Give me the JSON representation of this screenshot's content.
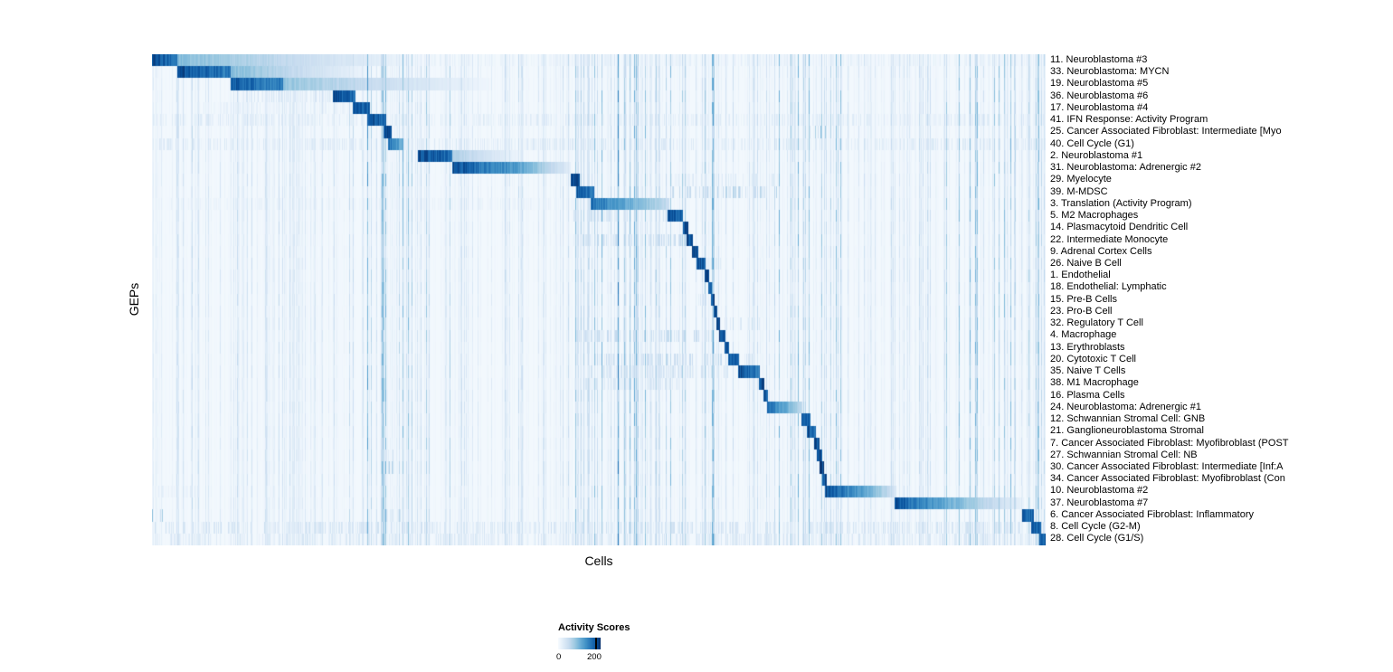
{
  "chart_data": {
    "type": "heatmap",
    "xlabel": "Cells",
    "ylabel": "GEPs",
    "colormap": "Blues",
    "colors": {
      "low": "#f7fbff",
      "high": "#08306b"
    },
    "legend": {
      "title": "Activity Scores",
      "ticks": [
        "0",
        "200"
      ]
    },
    "noise_bands": [
      [
        0.23,
        0.31
      ],
      [
        0.46,
        0.63
      ],
      [
        0.7,
        0.78
      ],
      [
        0.88,
        1.0
      ]
    ],
    "rows": [
      {
        "label": "11. Neuroblastoma #3",
        "seg": [
          [
            0.0,
            0.028,
            1,
            0.88
          ],
          [
            0.028,
            0.3,
            0.5,
            0.04
          ]
        ],
        "spk": [
          [
            0.3,
            1,
            0.1
          ]
        ]
      },
      {
        "label": "33. Neuroblastoma: MYCN",
        "seg": [
          [
            0.028,
            0.088,
            1,
            0.82
          ],
          [
            0.088,
            0.24,
            0.5,
            0.06
          ]
        ],
        "spk": []
      },
      {
        "label": "19. Neuroblastoma #5",
        "seg": [
          [
            0.088,
            0.146,
            0.95,
            0.78
          ],
          [
            0.146,
            0.38,
            0.45,
            0.04
          ]
        ],
        "spk": []
      },
      {
        "label": "36. Neuroblastoma #6",
        "seg": [
          [
            0.202,
            0.227,
            1,
            0.92
          ]
        ],
        "spk": [
          [
            0.09,
            0.2,
            0.18
          ]
        ]
      },
      {
        "label": "17. Neuroblastoma #4",
        "seg": [
          [
            0.2245,
            0.243,
            1,
            0.95
          ]
        ],
        "spk": [
          [
            0.05,
            0.22,
            0.1
          ]
        ]
      },
      {
        "label": "41. IFN Response: Activity Program",
        "seg": [
          [
            0.24,
            0.262,
            1,
            0.9
          ]
        ],
        "spk": [
          [
            0,
            1,
            0.14
          ]
        ]
      },
      {
        "label": "25. Cancer Associated Fibroblast: Intermediate [Myo",
        "seg": [
          [
            0.259,
            0.268,
            1,
            1
          ]
        ],
        "spk": [
          [
            0.735,
            0.755,
            0.45
          ]
        ]
      },
      {
        "label": "40. Cell Cycle (G1)",
        "seg": [
          [
            0.264,
            0.281,
            0.85,
            0.55
          ]
        ],
        "spk": [
          [
            0,
            1,
            0.16
          ]
        ]
      },
      {
        "label": "2. Neuroblastoma #1",
        "seg": [
          [
            0.297,
            0.336,
            1,
            0.88
          ],
          [
            0.336,
            0.41,
            0.38,
            0.06
          ]
        ],
        "spk": []
      },
      {
        "label": "31. Neuroblastoma: Adrenergic #2",
        "seg": [
          [
            0.336,
            0.405,
            1,
            0.68
          ],
          [
            0.405,
            0.468,
            0.68,
            0.12
          ]
        ],
        "spk": []
      },
      {
        "label": "29. Myelocyte",
        "seg": [
          [
            0.468,
            0.478,
            1,
            0.95
          ]
        ],
        "spk": [
          [
            0.58,
            0.7,
            0.15
          ]
        ]
      },
      {
        "label": "39. M-MDSC",
        "seg": [
          [
            0.474,
            0.494,
            1,
            0.82
          ]
        ],
        "spk": [
          [
            0.58,
            0.7,
            0.32
          ]
        ]
      },
      {
        "label": "3. Translation (Activity Program)",
        "seg": [
          [
            0.49,
            0.578,
            0.88,
            0.28
          ]
        ],
        "spk": [
          [
            0,
            0.49,
            0.08
          ]
        ]
      },
      {
        "label": "5. M2 Macrophages",
        "seg": [
          [
            0.576,
            0.594,
            1,
            0.88
          ]
        ],
        "spk": [
          [
            0.47,
            0.576,
            0.22
          ]
        ]
      },
      {
        "label": "14. Plasmacytoid Dendritic Cell",
        "seg": [
          [
            0.594,
            0.6,
            1,
            1
          ]
        ],
        "spk": []
      },
      {
        "label": "22. Intermediate Monocyte",
        "seg": [
          [
            0.598,
            0.605,
            1,
            1
          ]
        ],
        "spk": [
          [
            0.47,
            0.6,
            0.28
          ]
        ]
      },
      {
        "label": "9. Adrenal Cortex Cells",
        "seg": [
          [
            0.604,
            0.611,
            1,
            1
          ]
        ],
        "spk": []
      },
      {
        "label": "26. Naive B Cell",
        "seg": [
          [
            0.609,
            0.619,
            1,
            0.95
          ]
        ],
        "spk": [
          [
            0.62,
            0.64,
            0.15
          ]
        ]
      },
      {
        "label": "1. Endothelial",
        "seg": [
          [
            0.618,
            0.623,
            1,
            1
          ]
        ],
        "spk": []
      },
      {
        "label": "18. Endothelial: Lymphatic",
        "seg": [
          [
            0.6215,
            0.626,
            1,
            1
          ]
        ],
        "spk": []
      },
      {
        "label": "15. Pre-B Cells",
        "seg": [
          [
            0.625,
            0.629,
            1,
            1
          ]
        ],
        "spk": [
          [
            0.61,
            0.62,
            0.2
          ]
        ]
      },
      {
        "label": "23. Pro-B Cell",
        "seg": [
          [
            0.628,
            0.632,
            1,
            1
          ]
        ],
        "spk": []
      },
      {
        "label": "32. Regulatory T Cell",
        "seg": [
          [
            0.631,
            0.635,
            1,
            1
          ]
        ],
        "spk": [
          [
            0.64,
            0.68,
            0.18
          ]
        ]
      },
      {
        "label": "4. Macrophage",
        "seg": [
          [
            0.634,
            0.641,
            1,
            1
          ]
        ],
        "spk": [
          [
            0.47,
            0.63,
            0.28
          ]
        ]
      },
      {
        "label": "13. Erythroblasts",
        "seg": [
          [
            0.64,
            0.645,
            1,
            1
          ]
        ],
        "spk": []
      },
      {
        "label": "20. Cytotoxic T Cell",
        "seg": [
          [
            0.644,
            0.656,
            1,
            0.9
          ]
        ],
        "spk": [
          [
            0.49,
            0.64,
            0.28
          ],
          [
            0.656,
            0.68,
            0.2
          ]
        ]
      },
      {
        "label": "35. Naive T Cells",
        "seg": [
          [
            0.655,
            0.68,
            1,
            0.82
          ]
        ],
        "spk": [
          [
            0.49,
            0.65,
            0.22
          ]
        ]
      },
      {
        "label": "38. M1 Macrophage",
        "seg": [
          [
            0.679,
            0.685,
            1,
            1
          ]
        ],
        "spk": [
          [
            0.47,
            0.6,
            0.18
          ]
        ]
      },
      {
        "label": "16. Plasma Cells",
        "seg": [
          [
            0.684,
            0.689,
            1,
            1
          ]
        ],
        "spk": []
      },
      {
        "label": "24. Neuroblastoma: Adrenergic #1",
        "seg": [
          [
            0.688,
            0.727,
            0.9,
            0.3
          ]
        ],
        "spk": []
      },
      {
        "label": "12. Schwannian Stromal Cell: GNB",
        "seg": [
          [
            0.726,
            0.736,
            1,
            0.88
          ]
        ],
        "spk": []
      },
      {
        "label": "21. Ganglioneuroblastoma Stromal",
        "seg": [
          [
            0.732,
            0.742,
            1,
            0.82
          ]
        ],
        "spk": []
      },
      {
        "label": "7. Cancer Associated Fibroblast: Myofibroblast (POST",
        "seg": [
          [
            0.74,
            0.746,
            1,
            1
          ]
        ],
        "spk": []
      },
      {
        "label": "27. Schwannian Stromal Cell: NB",
        "seg": [
          [
            0.743,
            0.749,
            1,
            1
          ]
        ],
        "spk": [
          [
            0.26,
            0.27,
            0.3
          ]
        ]
      },
      {
        "label": "30. Cancer Associated Fibroblast: Intermediate [Inf:A",
        "seg": [
          [
            0.746,
            0.752,
            1,
            1
          ]
        ],
        "spk": [
          [
            0.26,
            0.27,
            0.35
          ]
        ]
      },
      {
        "label": "34. Cancer Associated Fibroblast: Myofibroblast (Con",
        "seg": [
          [
            0.749,
            0.755,
            1,
            1
          ]
        ],
        "spk": []
      },
      {
        "label": "10. Neuroblastoma #2",
        "seg": [
          [
            0.753,
            0.802,
            1,
            0.58
          ],
          [
            0.802,
            0.832,
            0.58,
            0.18
          ]
        ],
        "spk": [
          [
            0,
            0.05,
            0.12
          ]
        ]
      },
      {
        "label": "37. Neuroblastoma #7",
        "seg": [
          [
            0.83,
            0.905,
            1,
            0.48
          ],
          [
            0.905,
            0.975,
            0.48,
            0.08
          ]
        ],
        "spk": []
      },
      {
        "label": "6. Cancer Associated Fibroblast: Inflammatory",
        "seg": [
          [
            0.973,
            0.986,
            1,
            0.88
          ]
        ],
        "spk": [
          [
            0,
            0.015,
            0.45
          ],
          [
            0.26,
            0.28,
            0.2
          ]
        ]
      },
      {
        "label": "8. Cell Cycle (G2-M)",
        "seg": [
          [
            0.983,
            0.994,
            1,
            0.92
          ]
        ],
        "spk": [
          [
            0,
            1,
            0.22
          ]
        ]
      },
      {
        "label": "28. Cell Cycle (G1/S)",
        "seg": [
          [
            0.992,
            1.0,
            1,
            0.92
          ]
        ],
        "spk": [
          [
            0,
            1,
            0.18
          ]
        ]
      }
    ]
  }
}
